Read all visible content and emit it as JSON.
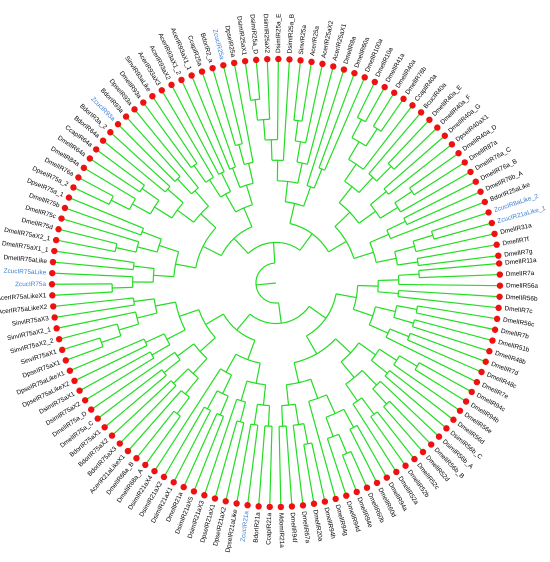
{
  "colors": {
    "branch": "#22dd22",
    "tip": "#ee1111",
    "label_default": "#000000",
    "label_highlight": "#3a7fd5"
  },
  "tree": {
    "tips": [
      {
        "label": "DmelIR11a",
        "hl": false
      },
      {
        "label": "DmelIR7a",
        "hl": false
      },
      {
        "label": "DmelIR56a",
        "hl": false
      },
      {
        "label": "DmelIR56b",
        "hl": false
      },
      {
        "label": "DmelIR7c",
        "hl": false
      },
      {
        "label": "DmelIR56c",
        "hl": false
      },
      {
        "label": "DmelIR7b",
        "hl": false
      },
      {
        "label": "DmelIR51b",
        "hl": false
      },
      {
        "label": "DmelIR48b",
        "hl": false
      },
      {
        "label": "DmelIR7d",
        "hl": false
      },
      {
        "label": "DmelIR48c",
        "hl": false
      },
      {
        "label": "DmelIR7e",
        "hl": false
      },
      {
        "label": "DmelIR94c",
        "hl": false
      },
      {
        "label": "DmelIR94b",
        "hl": false
      },
      {
        "label": "DmelIR56e",
        "hl": false
      },
      {
        "label": "DmelIR56d",
        "hl": false
      },
      {
        "label": "DsimIR56b_C",
        "hl": false
      },
      {
        "label": "DsimIR56b_A",
        "hl": false
      },
      {
        "label": "DmelIR56b_B",
        "hl": false
      },
      {
        "label": "DmelIR52d",
        "hl": false
      },
      {
        "label": "DmelIR52c",
        "hl": false
      },
      {
        "label": "DmelIR52b",
        "hl": false
      },
      {
        "label": "DmelIR52a",
        "hl": false
      },
      {
        "label": "DmelIR94a",
        "hl": false
      },
      {
        "label": "DmelIR60d",
        "hl": false
      },
      {
        "label": "DmelIR60b",
        "hl": false
      },
      {
        "label": "DmelIR94e",
        "hl": false
      },
      {
        "label": "DmelIR94d",
        "hl": false
      },
      {
        "label": "DmelIR94g",
        "hl": false
      },
      {
        "label": "DmelIR94h",
        "hl": false
      },
      {
        "label": "DmelIR20a",
        "hl": false
      },
      {
        "label": "DmelIR67a",
        "hl": false
      },
      {
        "label": "DmelIR94f",
        "hl": false
      },
      {
        "label": "MdomIR21a",
        "hl": false
      },
      {
        "label": "CcapIR21a",
        "hl": false
      },
      {
        "label": "BdorIR21a",
        "hl": false
      },
      {
        "label": "ZcucIR21a",
        "hl": true
      },
      {
        "label": "DpseIR21aLike",
        "hl": false
      },
      {
        "label": "DpseIR21aX2",
        "hl": false
      },
      {
        "label": "DpseIR21aX1",
        "hl": false
      },
      {
        "label": "DsimIR21aX3",
        "hl": false
      },
      {
        "label": "DsimIR21aX5",
        "hl": false
      },
      {
        "label": "DmelIR21a",
        "hl": false
      },
      {
        "label": "DsimIR21aX1",
        "hl": false
      },
      {
        "label": "DsimIR21aX2",
        "hl": false
      },
      {
        "label": "DsimIR21aX4",
        "hl": false
      },
      {
        "label": "DmelIR68a_A",
        "hl": false
      },
      {
        "label": "DmelIR68a_B",
        "hl": false
      },
      {
        "label": "AcerIR21aLikeX1",
        "hl": false
      },
      {
        "label": "BdorIR75aX3",
        "hl": false
      },
      {
        "label": "BdorIR75aX2",
        "hl": false
      },
      {
        "label": "BdorIR75aX1",
        "hl": false
      },
      {
        "label": "DmelIR75a_C",
        "hl": false
      },
      {
        "label": "DmelIR75a_D",
        "hl": false
      },
      {
        "label": "DsimIR75aX2",
        "hl": false
      },
      {
        "label": "DsimIR75aX1",
        "hl": false
      },
      {
        "label": "DpseIR75aLikeX2",
        "hl": false
      },
      {
        "label": "DpseIR75aLikeX1",
        "hl": false
      },
      {
        "label": "DpseIR75aX1",
        "hl": false
      },
      {
        "label": "SinvIR75aX1",
        "hl": false
      },
      {
        "label": "SinvIR75aX2_2",
        "hl": false
      },
      {
        "label": "SinvIR75aX2_1",
        "hl": false
      },
      {
        "label": "SinvIR75aX3",
        "hl": false
      },
      {
        "label": "AcerIR75aLikeX2",
        "hl": false
      },
      {
        "label": "AcerIR75aLikeX1",
        "hl": false
      },
      {
        "label": "ZcucIR75a",
        "hl": true
      },
      {
        "label": "ZcucIR75aLike",
        "hl": true
      },
      {
        "label": "DmelIR75aLike",
        "hl": false
      },
      {
        "label": "DmelIR75aX1_1",
        "hl": false
      },
      {
        "label": "DmelIR75aX2_1",
        "hl": false
      },
      {
        "label": "DmelIR75d",
        "hl": false
      },
      {
        "label": "DmelIR75c",
        "hl": false
      },
      {
        "label": "DmelIR75b",
        "hl": false
      },
      {
        "label": "DpseIR75a_1",
        "hl": false
      },
      {
        "label": "DpseIR75a_2",
        "hl": false
      },
      {
        "label": "DmelIR76a",
        "hl": false
      },
      {
        "label": "DmelIR84a",
        "hl": false
      },
      {
        "label": "DmelIR64a",
        "hl": false
      },
      {
        "label": "CcapIR64a",
        "hl": false
      },
      {
        "label": "BdorIR64a",
        "hl": false
      },
      {
        "label": "BdorIR3a_2",
        "hl": false
      },
      {
        "label": "ZcucIR93a",
        "hl": true
      },
      {
        "label": "BdorIR93a",
        "hl": false
      },
      {
        "label": "DpseIR93a",
        "hl": false
      },
      {
        "label": "DmelIR93a",
        "hl": false
      },
      {
        "label": "SinvIR93aLike",
        "hl": false
      },
      {
        "label": "AcerIR93aX3",
        "hl": false
      },
      {
        "label": "AcerIR93aX2",
        "hl": false
      },
      {
        "label": "AcerIR93aX1_2",
        "hl": false
      },
      {
        "label": "AcerIR93aX1_1",
        "hl": false
      },
      {
        "label": "CcapIR25a",
        "hl": false
      },
      {
        "label": "BdorIR2_a",
        "hl": false
      },
      {
        "label": "ZcucIR25a",
        "hl": true
      },
      {
        "label": "DpseIR25a",
        "hl": false
      },
      {
        "label": "DsimIR25aX1",
        "hl": false
      },
      {
        "label": "DsimIR25a_D",
        "hl": false
      },
      {
        "label": "DsimIR25aX2",
        "hl": false
      },
      {
        "label": "DsimIR25a_E",
        "hl": false
      },
      {
        "label": "DsimIR25a_B",
        "hl": false
      },
      {
        "label": "SinvIR25a",
        "hl": false
      },
      {
        "label": "AcerIR25a",
        "hl": false
      },
      {
        "label": "AcerIR25aX2",
        "hl": false
      },
      {
        "label": "AcerIR25aX1",
        "hl": false
      },
      {
        "label": "DmelIR8a",
        "hl": false
      },
      {
        "label": "DmelIR60a",
        "hl": false
      },
      {
        "label": "DmelIR100a",
        "hl": false
      },
      {
        "label": "DmelIR10a",
        "hl": false
      },
      {
        "label": "DmelIR41a",
        "hl": false
      },
      {
        "label": "DmelIR40a",
        "hl": false
      },
      {
        "label": "DmelIR76b",
        "hl": false
      },
      {
        "label": "CcapIR40a",
        "hl": false
      },
      {
        "label": "BcucIR40a",
        "hl": false
      },
      {
        "label": "DmelIR40a_E",
        "hl": false
      },
      {
        "label": "DmelIR40a_F",
        "hl": false
      },
      {
        "label": "DmelIR40a_G",
        "hl": false
      },
      {
        "label": "DpseIR40aX1",
        "hl": false
      },
      {
        "label": "DmelIR40a_D",
        "hl": false
      },
      {
        "label": "DmelIR87a",
        "hl": false
      },
      {
        "label": "DmelIR76a_C",
        "hl": false
      },
      {
        "label": "DmelIR76a_B",
        "hl": false
      },
      {
        "label": "DmelIR76b_A",
        "hl": false
      },
      {
        "label": "BdorIR25aLike",
        "hl": false
      },
      {
        "label": "ZcucIR8aLike_2",
        "hl": true
      },
      {
        "label": "ZcucIR21aLike_1",
        "hl": true
      },
      {
        "label": "DmelIR31a",
        "hl": false
      },
      {
        "label": "DmelIR7f",
        "hl": false
      },
      {
        "label": "DmelIR7g",
        "hl": false
      }
    ]
  }
}
